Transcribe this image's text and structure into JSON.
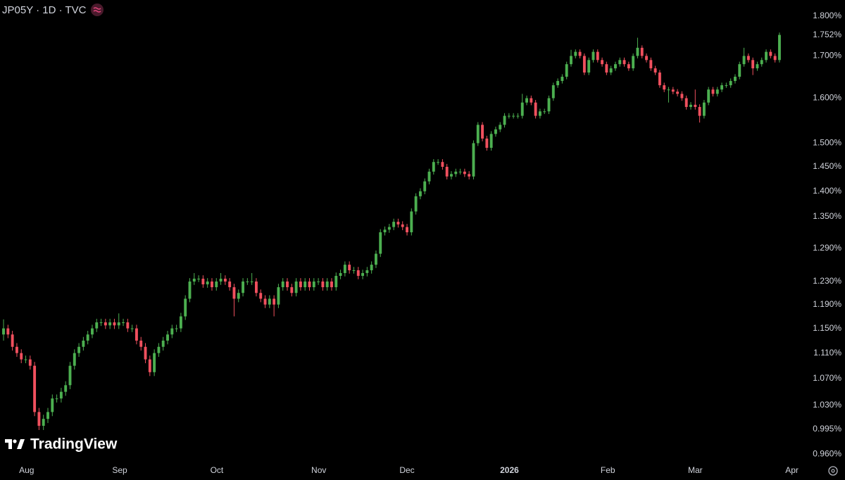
{
  "chart_data": {
    "type": "candlestick",
    "title": "JP05Y · 1D · TVC",
    "logo": "TradingView",
    "up_color": "#4caf50",
    "down_color": "#f0505e",
    "log_scale": true,
    "grid": false,
    "ylim": [
      0.946,
      1.842
    ],
    "xlim": [
      -0.8,
      184.7
    ],
    "yticks": [
      {
        "value": 1.8,
        "label": "1.800%"
      },
      {
        "value": 1.7,
        "label": "1.700%"
      },
      {
        "value": 1.6,
        "label": "1.600%"
      },
      {
        "value": 1.5,
        "label": "1.500%"
      },
      {
        "value": 1.45,
        "label": "1.450%"
      },
      {
        "value": 1.4,
        "label": "1.400%"
      },
      {
        "value": 1.35,
        "label": "1.350%"
      },
      {
        "value": 1.29,
        "label": "1.290%"
      },
      {
        "value": 1.23,
        "label": "1.230%"
      },
      {
        "value": 1.19,
        "label": "1.190%"
      },
      {
        "value": 1.15,
        "label": "1.150%"
      },
      {
        "value": 1.11,
        "label": "1.110%"
      },
      {
        "value": 1.07,
        "label": "1.070%"
      },
      {
        "value": 1.03,
        "label": "1.030%"
      },
      {
        "value": 0.995,
        "label": "0.995%"
      },
      {
        "value": 0.96,
        "label": "0.960%"
      }
    ],
    "last_price": {
      "value": 1.752,
      "label": "1.752%"
    },
    "xticks": [
      {
        "value": 5.2,
        "label": "Aug"
      },
      {
        "value": 26.2,
        "label": "Sep"
      },
      {
        "value": 48.1,
        "label": "Oct"
      },
      {
        "value": 71.1,
        "label": "Nov"
      },
      {
        "value": 91,
        "label": "Dec"
      },
      {
        "value": 114.1,
        "label": "2026"
      },
      {
        "value": 136.3,
        "label": "Feb"
      },
      {
        "value": 156,
        "label": "Mar"
      },
      {
        "value": 177.8,
        "label": "Apr"
      }
    ],
    "open": [
      1.14,
      1.15,
      1.14,
      1.12,
      1.11,
      1.1,
      1.1,
      1.09,
      1.02,
      1.0,
      1.01,
      1.02,
      1.04,
      1.04,
      1.05,
      1.06,
      1.09,
      1.11,
      1.12,
      1.13,
      1.14,
      1.15,
      1.16,
      1.16,
      1.155,
      1.16,
      1.155,
      1.16,
      1.16,
      1.15,
      1.15,
      1.13,
      1.12,
      1.1,
      1.08,
      1.11,
      1.12,
      1.13,
      1.14,
      1.15,
      1.15,
      1.17,
      1.2,
      1.23,
      1.235,
      1.235,
      1.225,
      1.23,
      1.22,
      1.23,
      1.235,
      1.23,
      1.22,
      1.2,
      1.21,
      1.23,
      1.23,
      1.23,
      1.21,
      1.2,
      1.19,
      1.2,
      1.19,
      1.22,
      1.23,
      1.22,
      1.21,
      1.23,
      1.22,
      1.23,
      1.22,
      1.23,
      1.23,
      1.22,
      1.23,
      1.22,
      1.24,
      1.245,
      1.26,
      1.25,
      1.25,
      1.24,
      1.245,
      1.25,
      1.26,
      1.28,
      1.32,
      1.325,
      1.33,
      1.34,
      1.335,
      1.33,
      1.32,
      1.36,
      1.39,
      1.4,
      1.42,
      1.44,
      1.46,
      1.46,
      1.45,
      1.43,
      1.435,
      1.44,
      1.44,
      1.435,
      1.43,
      1.5,
      1.54,
      1.51,
      1.49,
      1.52,
      1.53,
      1.54,
      1.56,
      1.56,
      1.56,
      1.56,
      1.59,
      1.6,
      1.59,
      1.56,
      1.57,
      1.57,
      1.6,
      1.63,
      1.64,
      1.65,
      1.68,
      1.7,
      1.71,
      1.7,
      1.66,
      1.69,
      1.71,
      1.69,
      1.68,
      1.66,
      1.67,
      1.68,
      1.69,
      1.68,
      1.67,
      1.7,
      1.72,
      1.7,
      1.69,
      1.67,
      1.66,
      1.63,
      1.62,
      1.62,
      1.615,
      1.61,
      1.6,
      1.58,
      1.585,
      1.58,
      1.56,
      1.59,
      1.62,
      1.61,
      1.62,
      1.63,
      1.63,
      1.64,
      1.65,
      1.68,
      1.7,
      1.69,
      1.67,
      1.68,
      1.69,
      1.71,
      1.7,
      1.69
    ],
    "high": [
      1.165,
      1.156,
      1.146,
      1.126,
      1.116,
      1.106,
      1.106,
      1.096,
      1.026,
      1.016,
      1.026,
      1.046,
      1.046,
      1.056,
      1.066,
      1.096,
      1.116,
      1.126,
      1.136,
      1.146,
      1.156,
      1.166,
      1.166,
      1.166,
      1.166,
      1.166,
      1.175,
      1.166,
      1.166,
      1.156,
      1.156,
      1.136,
      1.126,
      1.106,
      1.116,
      1.126,
      1.136,
      1.146,
      1.156,
      1.156,
      1.176,
      1.206,
      1.236,
      1.245,
      1.241,
      1.241,
      1.236,
      1.236,
      1.236,
      1.245,
      1.241,
      1.236,
      1.226,
      1.216,
      1.236,
      1.236,
      1.245,
      1.236,
      1.216,
      1.206,
      1.206,
      1.206,
      1.226,
      1.236,
      1.236,
      1.226,
      1.236,
      1.236,
      1.236,
      1.236,
      1.236,
      1.236,
      1.236,
      1.236,
      1.236,
      1.246,
      1.251,
      1.266,
      1.266,
      1.256,
      1.256,
      1.251,
      1.256,
      1.266,
      1.286,
      1.326,
      1.331,
      1.336,
      1.346,
      1.346,
      1.341,
      1.336,
      1.366,
      1.396,
      1.406,
      1.426,
      1.446,
      1.466,
      1.466,
      1.466,
      1.456,
      1.441,
      1.446,
      1.446,
      1.446,
      1.441,
      1.506,
      1.546,
      1.546,
      1.516,
      1.526,
      1.536,
      1.546,
      1.566,
      1.566,
      1.566,
      1.566,
      1.61,
      1.606,
      1.606,
      1.596,
      1.576,
      1.576,
      1.606,
      1.636,
      1.646,
      1.656,
      1.686,
      1.715,
      1.716,
      1.716,
      1.706,
      1.696,
      1.716,
      1.716,
      1.696,
      1.686,
      1.676,
      1.686,
      1.696,
      1.696,
      1.686,
      1.706,
      1.745,
      1.726,
      1.706,
      1.696,
      1.676,
      1.666,
      1.636,
      1.626,
      1.626,
      1.621,
      1.616,
      1.606,
      1.591,
      1.62,
      1.586,
      1.596,
      1.626,
      1.626,
      1.626,
      1.636,
      1.636,
      1.646,
      1.656,
      1.686,
      1.72,
      1.706,
      1.696,
      1.686,
      1.696,
      1.716,
      1.716,
      1.706,
      1.758
    ],
    "low": [
      1.13,
      1.134,
      1.114,
      1.104,
      1.094,
      1.094,
      1.084,
      1.014,
      0.994,
      0.994,
      1.004,
      1.014,
      1.034,
      1.034,
      1.044,
      1.054,
      1.084,
      1.104,
      1.114,
      1.124,
      1.134,
      1.144,
      1.154,
      1.149,
      1.149,
      1.149,
      1.149,
      1.154,
      1.144,
      1.144,
      1.124,
      1.114,
      1.094,
      1.074,
      1.074,
      1.104,
      1.114,
      1.124,
      1.134,
      1.144,
      1.144,
      1.164,
      1.194,
      1.224,
      1.229,
      1.219,
      1.219,
      1.214,
      1.214,
      1.224,
      1.224,
      1.214,
      1.17,
      1.194,
      1.204,
      1.224,
      1.224,
      1.204,
      1.194,
      1.184,
      1.184,
      1.17,
      1.184,
      1.214,
      1.214,
      1.204,
      1.204,
      1.214,
      1.214,
      1.214,
      1.214,
      1.224,
      1.214,
      1.214,
      1.214,
      1.214,
      1.234,
      1.239,
      1.244,
      1.244,
      1.234,
      1.234,
      1.239,
      1.244,
      1.254,
      1.274,
      1.314,
      1.319,
      1.324,
      1.329,
      1.324,
      1.314,
      1.314,
      1.354,
      1.384,
      1.394,
      1.414,
      1.434,
      1.454,
      1.444,
      1.424,
      1.424,
      1.429,
      1.434,
      1.429,
      1.424,
      1.424,
      1.494,
      1.504,
      1.484,
      1.484,
      1.514,
      1.524,
      1.534,
      1.554,
      1.554,
      1.554,
      1.554,
      1.584,
      1.584,
      1.554,
      1.554,
      1.564,
      1.564,
      1.594,
      1.624,
      1.634,
      1.644,
      1.674,
      1.694,
      1.694,
      1.654,
      1.654,
      1.684,
      1.684,
      1.674,
      1.654,
      1.654,
      1.664,
      1.674,
      1.674,
      1.664,
      1.664,
      1.694,
      1.694,
      1.684,
      1.664,
      1.654,
      1.624,
      1.614,
      1.59,
      1.609,
      1.604,
      1.594,
      1.574,
      1.574,
      1.574,
      1.545,
      1.554,
      1.584,
      1.604,
      1.604,
      1.614,
      1.624,
      1.624,
      1.634,
      1.644,
      1.674,
      1.684,
      1.654,
      1.664,
      1.674,
      1.684,
      1.694,
      1.684,
      1.684
    ],
    "close": [
      1.15,
      1.14,
      1.12,
      1.11,
      1.1,
      1.1,
      1.09,
      1.02,
      1.0,
      1.01,
      1.02,
      1.04,
      1.04,
      1.05,
      1.06,
      1.09,
      1.11,
      1.12,
      1.13,
      1.14,
      1.15,
      1.16,
      1.16,
      1.155,
      1.16,
      1.155,
      1.16,
      1.16,
      1.15,
      1.15,
      1.13,
      1.12,
      1.1,
      1.08,
      1.11,
      1.12,
      1.13,
      1.14,
      1.15,
      1.15,
      1.17,
      1.2,
      1.23,
      1.235,
      1.235,
      1.225,
      1.23,
      1.22,
      1.23,
      1.235,
      1.23,
      1.22,
      1.2,
      1.21,
      1.23,
      1.23,
      1.23,
      1.21,
      1.2,
      1.19,
      1.2,
      1.19,
      1.22,
      1.23,
      1.22,
      1.21,
      1.23,
      1.22,
      1.23,
      1.22,
      1.23,
      1.23,
      1.22,
      1.23,
      1.22,
      1.24,
      1.245,
      1.26,
      1.25,
      1.25,
      1.24,
      1.245,
      1.25,
      1.26,
      1.28,
      1.32,
      1.325,
      1.33,
      1.34,
      1.335,
      1.33,
      1.32,
      1.36,
      1.39,
      1.4,
      1.42,
      1.44,
      1.46,
      1.46,
      1.45,
      1.43,
      1.435,
      1.44,
      1.44,
      1.435,
      1.43,
      1.5,
      1.54,
      1.51,
      1.49,
      1.52,
      1.53,
      1.54,
      1.56,
      1.56,
      1.56,
      1.56,
      1.59,
      1.6,
      1.59,
      1.56,
      1.57,
      1.57,
      1.6,
      1.63,
      1.64,
      1.65,
      1.68,
      1.7,
      1.71,
      1.7,
      1.66,
      1.69,
      1.71,
      1.69,
      1.68,
      1.66,
      1.67,
      1.68,
      1.69,
      1.68,
      1.67,
      1.7,
      1.72,
      1.7,
      1.69,
      1.67,
      1.66,
      1.63,
      1.62,
      1.62,
      1.615,
      1.61,
      1.6,
      1.58,
      1.585,
      1.58,
      1.56,
      1.59,
      1.62,
      1.61,
      1.62,
      1.63,
      1.63,
      1.64,
      1.65,
      1.68,
      1.7,
      1.69,
      1.67,
      1.68,
      1.69,
      1.71,
      1.7,
      1.69,
      1.752
    ]
  }
}
